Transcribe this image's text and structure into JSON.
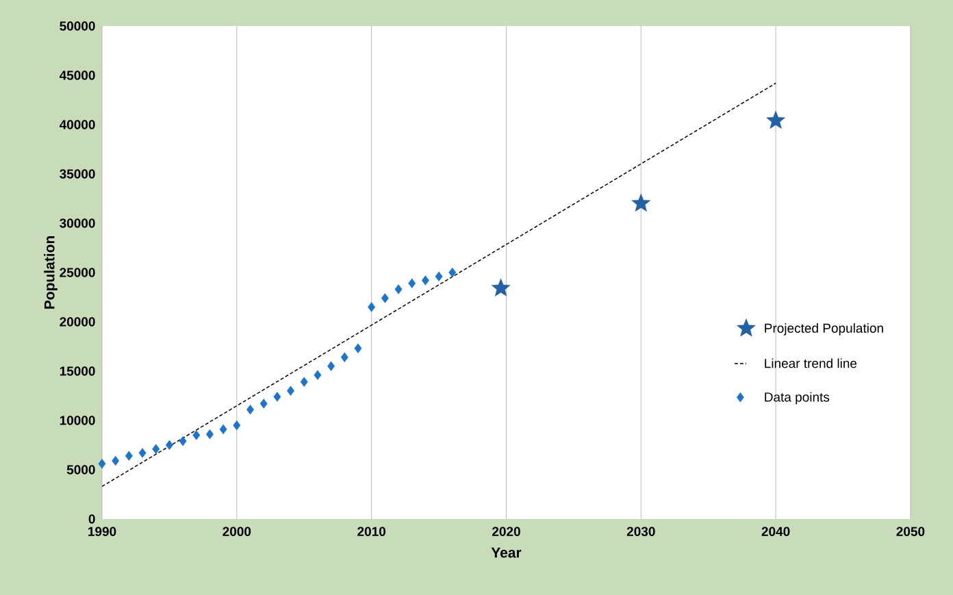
{
  "chart_data": {
    "type": "scatter",
    "xlabel": "Year",
    "ylabel": "Population",
    "xlim": [
      1990,
      2050
    ],
    "xticks": [
      1990,
      2000,
      2010,
      2020,
      2030,
      2040,
      2050
    ],
    "ylim": [
      0,
      50000
    ],
    "yticks": [
      0,
      5000,
      10000,
      15000,
      20000,
      25000,
      30000,
      35000,
      40000,
      45000,
      50000
    ],
    "grid": "x",
    "legend": "right",
    "series": [
      {
        "name": "Projected Population",
        "marker": "star",
        "color": "#2161a5",
        "x": [
          2019.6,
          2030,
          2040
        ],
        "values": [
          23400,
          32000,
          40400
        ]
      },
      {
        "name": "Linear trend line",
        "type": "line",
        "marker": "none",
        "line_style": "dashed",
        "color": "#000000",
        "x": [
          1990,
          2040
        ],
        "values": [
          3300,
          44200
        ]
      },
      {
        "name": "Data points",
        "marker": "diamond",
        "color": "#1a75cf",
        "x": [
          1990,
          1991,
          1992,
          1993,
          1994,
          1995,
          1996,
          1997,
          1998,
          1999,
          2000,
          2001,
          2002,
          2003,
          2004,
          2005,
          2006,
          2007,
          2008,
          2009,
          2010,
          2011,
          2012,
          2013,
          2014,
          2015,
          2016
        ],
        "values": [
          5600,
          5900,
          6400,
          6700,
          7100,
          7500,
          7900,
          8500,
          8600,
          9100,
          9500,
          11100,
          11700,
          12400,
          13000,
          13900,
          14600,
          15500,
          16400,
          17300,
          21500,
          22400,
          23300,
          23900,
          24200,
          24600,
          25000
        ]
      }
    ]
  }
}
